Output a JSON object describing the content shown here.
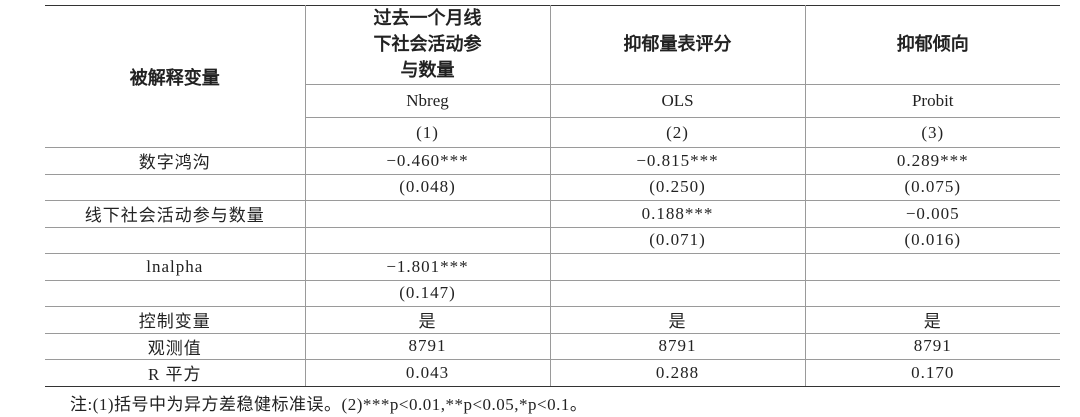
{
  "table": {
    "header": {
      "row_label": "被解释变量",
      "columns": [
        "过去一个月线下社会活动参与数量",
        "抑郁量表评分",
        "抑郁倾向"
      ],
      "models": [
        "Nbreg",
        "OLS",
        "Probit"
      ],
      "numbers": [
        "(1)",
        "(2)",
        "(3)"
      ]
    },
    "rows": [
      [
        "数字鸿沟",
        "−0.460***",
        "−0.815***",
        "0.289***"
      ],
      [
        null,
        "(0.048)",
        "(0.250)",
        "(0.075)"
      ],
      [
        "线下社会活动参与数量",
        null,
        "0.188***",
        "−0.005"
      ],
      [
        null,
        null,
        "(0.071)",
        "(0.016)"
      ],
      [
        "lnalpha",
        "−1.801***",
        null,
        null
      ],
      [
        null,
        "(0.147)",
        null,
        null
      ],
      [
        "控制变量",
        "是",
        "是",
        "是"
      ],
      [
        "观测值",
        "8791",
        "8791",
        "8791"
      ],
      [
        "R 平方",
        "0.043",
        "0.288",
        "0.170"
      ]
    ],
    "note": "注:(1)括号中为异方差稳健标准误。(2)***p<0.01,**p<0.05,*p<0.1。"
  }
}
